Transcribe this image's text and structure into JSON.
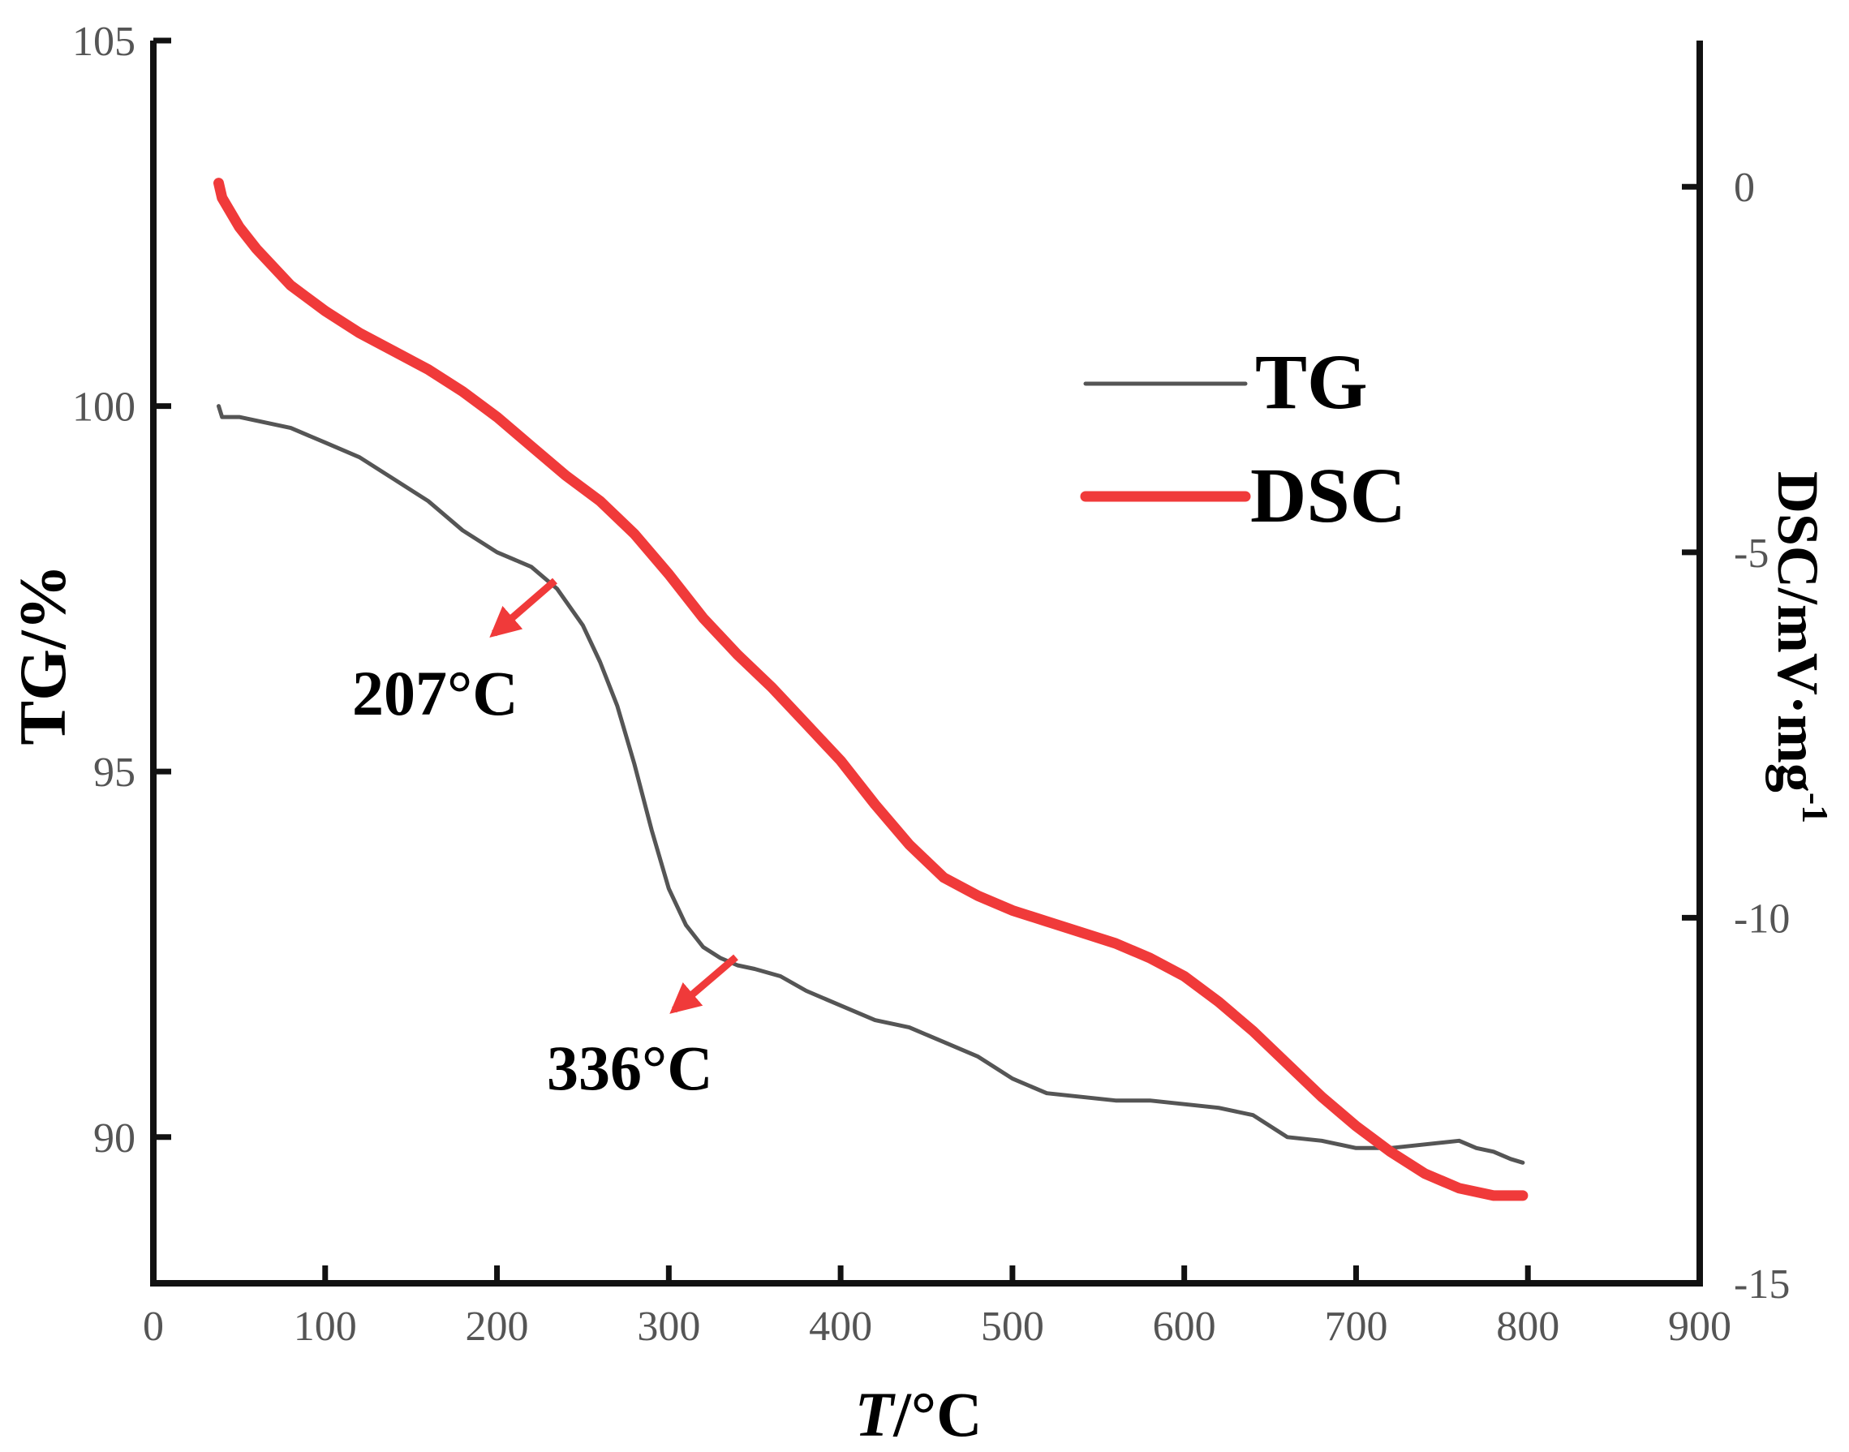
{
  "chart_data": {
    "type": "line",
    "title": "",
    "xlabel": {
      "italic": "T",
      "rest": "/°C"
    },
    "ylabel_left": "TG/%",
    "ylabel_right": {
      "base": "DSC/mV·mg",
      "sup": "-1"
    },
    "xlim": [
      0,
      900
    ],
    "ylim_left": [
      88,
      105
    ],
    "ylim_right": [
      -15,
      2
    ],
    "x_ticks": [
      0,
      100,
      200,
      300,
      400,
      500,
      600,
      700,
      800,
      900
    ],
    "y_left_ticks": [
      90,
      95,
      100,
      105
    ],
    "y_right_ticks": [
      0,
      -5,
      -10,
      -15
    ],
    "grid": false,
    "legend_position": "top-right",
    "colors": {
      "TG": "#555555",
      "DSC": "#f03a3a",
      "arrow": "#f03a3a",
      "axis": "#111111"
    },
    "series": [
      {
        "name": "TG",
        "axis": "left",
        "x": [
          38,
          40,
          50,
          60,
          80,
          100,
          120,
          140,
          160,
          180,
          200,
          220,
          235,
          250,
          260,
          270,
          280,
          290,
          300,
          310,
          320,
          330,
          340,
          350,
          365,
          380,
          400,
          420,
          440,
          460,
          480,
          500,
          520,
          540,
          560,
          580,
          600,
          620,
          640,
          660,
          680,
          700,
          720,
          740,
          760,
          770,
          780,
          790,
          797
        ],
        "values": [
          100.0,
          99.85,
          99.85,
          99.8,
          99.7,
          99.5,
          99.3,
          99.0,
          98.7,
          98.3,
          98.0,
          97.8,
          97.5,
          97.0,
          96.5,
          95.9,
          95.1,
          94.2,
          93.4,
          92.9,
          92.6,
          92.45,
          92.35,
          92.3,
          92.2,
          92.0,
          91.8,
          91.6,
          91.5,
          91.3,
          91.1,
          90.8,
          90.6,
          90.55,
          90.5,
          90.5,
          90.45,
          90.4,
          90.3,
          90.0,
          89.95,
          89.85,
          89.85,
          89.9,
          89.95,
          89.85,
          89.8,
          89.7,
          89.65
        ]
      },
      {
        "name": "DSC",
        "axis": "right",
        "x": [
          38,
          40,
          45,
          50,
          60,
          80,
          100,
          120,
          140,
          160,
          180,
          200,
          220,
          240,
          260,
          280,
          300,
          320,
          340,
          360,
          380,
          400,
          420,
          440,
          460,
          480,
          500,
          520,
          540,
          560,
          580,
          600,
          620,
          640,
          660,
          680,
          700,
          720,
          740,
          760,
          780,
          790,
          797
        ],
        "values": [
          0.05,
          -0.15,
          -0.35,
          -0.55,
          -0.85,
          -1.35,
          -1.7,
          -2.0,
          -2.25,
          -2.5,
          -2.8,
          -3.15,
          -3.55,
          -3.95,
          -4.3,
          -4.75,
          -5.3,
          -5.9,
          -6.4,
          -6.85,
          -7.35,
          -7.85,
          -8.45,
          -9.0,
          -9.45,
          -9.7,
          -9.9,
          -10.05,
          -10.2,
          -10.35,
          -10.55,
          -10.8,
          -11.15,
          -11.55,
          -12.0,
          -12.45,
          -12.85,
          -13.2,
          -13.5,
          -13.7,
          -13.8,
          -13.8,
          -13.8
        ]
      }
    ],
    "annotations": [
      {
        "text": "207°C",
        "point": [
          233,
          97.7
        ]
      },
      {
        "text": "336°C",
        "point": [
          340,
          92.5
        ]
      }
    ]
  }
}
